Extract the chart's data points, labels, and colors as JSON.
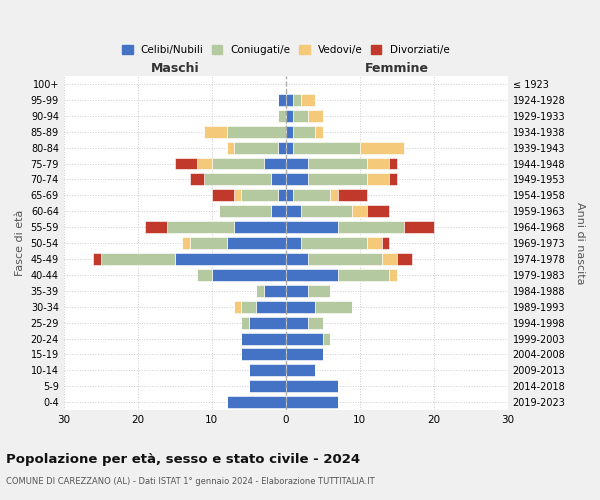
{
  "age_groups": [
    "100+",
    "95-99",
    "90-94",
    "85-89",
    "80-84",
    "75-79",
    "70-74",
    "65-69",
    "60-64",
    "55-59",
    "50-54",
    "45-49",
    "40-44",
    "35-39",
    "30-34",
    "25-29",
    "20-24",
    "15-19",
    "10-14",
    "5-9",
    "0-4"
  ],
  "birth_years": [
    "≤ 1923",
    "1924-1928",
    "1929-1933",
    "1934-1938",
    "1939-1943",
    "1944-1948",
    "1949-1953",
    "1954-1958",
    "1959-1963",
    "1964-1968",
    "1969-1973",
    "1974-1978",
    "1979-1983",
    "1984-1988",
    "1989-1993",
    "1994-1998",
    "1999-2003",
    "2004-2008",
    "2009-2013",
    "2014-2018",
    "2019-2023"
  ],
  "colors": {
    "celibi": "#4472c4",
    "coniugati": "#b5c9a0",
    "vedovi": "#f5c97a",
    "divorziati": "#c0392b"
  },
  "maschi": {
    "celibi": [
      0,
      1,
      0,
      0,
      1,
      3,
      2,
      1,
      2,
      7,
      8,
      15,
      10,
      3,
      4,
      5,
      6,
      6,
      5,
      5,
      8
    ],
    "coniugati": [
      0,
      0,
      1,
      8,
      6,
      7,
      9,
      5,
      7,
      9,
      5,
      10,
      2,
      1,
      2,
      1,
      0,
      0,
      0,
      0,
      0
    ],
    "vedovi": [
      0,
      0,
      0,
      3,
      1,
      2,
      0,
      1,
      0,
      0,
      1,
      0,
      0,
      0,
      1,
      0,
      0,
      0,
      0,
      0,
      0
    ],
    "divorziati": [
      0,
      0,
      0,
      0,
      0,
      3,
      2,
      3,
      0,
      3,
      0,
      1,
      0,
      0,
      0,
      0,
      0,
      0,
      0,
      0,
      0
    ]
  },
  "femmine": {
    "celibi": [
      0,
      1,
      1,
      1,
      1,
      3,
      3,
      1,
      2,
      7,
      2,
      3,
      7,
      3,
      4,
      3,
      5,
      5,
      4,
      7,
      7
    ],
    "coniugati": [
      0,
      1,
      2,
      3,
      9,
      8,
      8,
      5,
      7,
      9,
      9,
      10,
      7,
      3,
      5,
      2,
      1,
      0,
      0,
      0,
      0
    ],
    "vedovi": [
      0,
      2,
      2,
      1,
      6,
      3,
      3,
      1,
      2,
      0,
      2,
      2,
      1,
      0,
      0,
      0,
      0,
      0,
      0,
      0,
      0
    ],
    "divorziati": [
      0,
      0,
      0,
      0,
      0,
      1,
      1,
      4,
      3,
      4,
      1,
      2,
      0,
      0,
      0,
      0,
      0,
      0,
      0,
      0,
      0
    ]
  },
  "title": "Popolazione per età, sesso e stato civile - 2024",
  "subtitle": "COMUNE DI CAREZZANO (AL) - Dati ISTAT 1° gennaio 2024 - Elaborazione TUTTITALIA.IT",
  "xlabel_left": "Maschi",
  "xlabel_right": "Femmine",
  "ylabel_left": "Fasce di età",
  "ylabel_right": "Anni di nascita",
  "xlim": 30,
  "legend_labels": [
    "Celibi/Nubili",
    "Coniugati/e",
    "Vedovi/e",
    "Divorziati/e"
  ],
  "background_color": "#f0f0f0"
}
